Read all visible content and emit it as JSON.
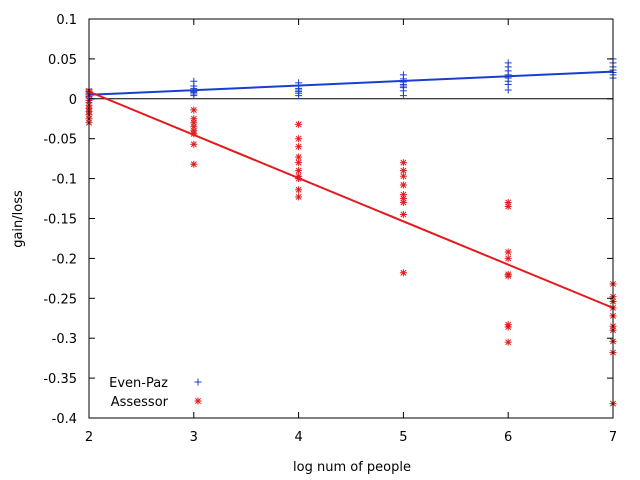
{
  "chart_data": {
    "type": "scatter",
    "xlabel": "log num of people",
    "ylabel": "gain/loss",
    "xlim": [
      2,
      7
    ],
    "ylim": [
      -0.4,
      0.1
    ],
    "x_ticks": [
      2,
      3,
      4,
      5,
      6,
      7
    ],
    "x_tick_labels": [
      "2",
      "3",
      "4",
      "5",
      "6",
      "7"
    ],
    "y_ticks": [
      0.1,
      0.05,
      0,
      -0.05,
      -0.1,
      -0.15,
      -0.2,
      -0.25,
      -0.3,
      -0.35,
      -0.4
    ],
    "y_tick_labels": [
      "0.1",
      "0.05",
      "0",
      "-0.05",
      "-0.1",
      "-0.15",
      "-0.2",
      "-0.25",
      "-0.3",
      "-0.35",
      "-0.4"
    ],
    "grid": false,
    "zero_line": true,
    "legend_position": "bottom-left",
    "series": [
      {
        "name": "Even-Paz",
        "marker": "plus",
        "color": "#1a3fd0",
        "points": [
          [
            2,
            0.012
          ],
          [
            2,
            0.009
          ],
          [
            2,
            0.007
          ],
          [
            2,
            0.005
          ],
          [
            2,
            0.003
          ],
          [
            2,
            0.001
          ],
          [
            2,
            -0.002
          ],
          [
            2,
            -0.005
          ],
          [
            3,
            0.022
          ],
          [
            3,
            0.016
          ],
          [
            3,
            0.013
          ],
          [
            3,
            0.011
          ],
          [
            3,
            0.009
          ],
          [
            3,
            0.008
          ],
          [
            3,
            0.006
          ],
          [
            3,
            0.004
          ],
          [
            4,
            0.02
          ],
          [
            4,
            0.016
          ],
          [
            4,
            0.013
          ],
          [
            4,
            0.011
          ],
          [
            4,
            0.009
          ],
          [
            4,
            0.007
          ],
          [
            4,
            0.004
          ],
          [
            5,
            0.03
          ],
          [
            5,
            0.025
          ],
          [
            5,
            0.021
          ],
          [
            5,
            0.018
          ],
          [
            5,
            0.016
          ],
          [
            5,
            0.014
          ],
          [
            5,
            0.01
          ],
          [
            5,
            0.004
          ],
          [
            6,
            0.045
          ],
          [
            6,
            0.04
          ],
          [
            6,
            0.035
          ],
          [
            6,
            0.03
          ],
          [
            6,
            0.026
          ],
          [
            6,
            0.022
          ],
          [
            6,
            0.018
          ],
          [
            6,
            0.011
          ],
          [
            7,
            0.05
          ],
          [
            7,
            0.045
          ],
          [
            7,
            0.04
          ],
          [
            7,
            0.036
          ],
          [
            7,
            0.033
          ],
          [
            7,
            0.03
          ],
          [
            7,
            0.026
          ]
        ],
        "fit": [
          [
            2,
            0.005
          ],
          [
            7,
            0.034
          ]
        ]
      },
      {
        "name": "Assessor",
        "marker": "star",
        "color": "#e41a1c",
        "points": [
          [
            2,
            0.01
          ],
          [
            2,
            0.005
          ],
          [
            2,
            -0.002
          ],
          [
            2,
            -0.008
          ],
          [
            2,
            -0.012
          ],
          [
            2,
            -0.016
          ],
          [
            2,
            -0.02
          ],
          [
            2,
            -0.025
          ],
          [
            2,
            -0.03
          ],
          [
            3,
            -0.014
          ],
          [
            3,
            -0.025
          ],
          [
            3,
            -0.03
          ],
          [
            3,
            -0.035
          ],
          [
            3,
            -0.04
          ],
          [
            3,
            -0.044
          ],
          [
            3,
            -0.057
          ],
          [
            3,
            -0.082
          ],
          [
            4,
            -0.032
          ],
          [
            4,
            -0.05
          ],
          [
            4,
            -0.06
          ],
          [
            4,
            -0.073
          ],
          [
            4,
            -0.08
          ],
          [
            4,
            -0.09
          ],
          [
            4,
            -0.097
          ],
          [
            4,
            -0.1
          ],
          [
            4,
            -0.114
          ],
          [
            4,
            -0.123
          ],
          [
            5,
            -0.08
          ],
          [
            5,
            -0.09
          ],
          [
            5,
            -0.097
          ],
          [
            5,
            -0.108
          ],
          [
            5,
            -0.12
          ],
          [
            5,
            -0.125
          ],
          [
            5,
            -0.13
          ],
          [
            5,
            -0.145
          ],
          [
            5,
            -0.218
          ],
          [
            6,
            -0.13
          ],
          [
            6,
            -0.135
          ],
          [
            6,
            -0.192
          ],
          [
            6,
            -0.2
          ],
          [
            6,
            -0.22
          ],
          [
            6,
            -0.222
          ],
          [
            6,
            -0.283
          ],
          [
            6,
            -0.286
          ],
          [
            6,
            -0.305
          ],
          [
            7,
            -0.232
          ],
          [
            7,
            -0.248
          ],
          [
            7,
            -0.254
          ],
          [
            7,
            -0.262
          ],
          [
            7,
            -0.272
          ],
          [
            7,
            -0.285
          ],
          [
            7,
            -0.29
          ],
          [
            7,
            -0.304
          ],
          [
            7,
            -0.318
          ],
          [
            7,
            -0.382
          ]
        ],
        "fit": [
          [
            2,
            0.009
          ],
          [
            7,
            -0.262
          ]
        ]
      }
    ]
  }
}
